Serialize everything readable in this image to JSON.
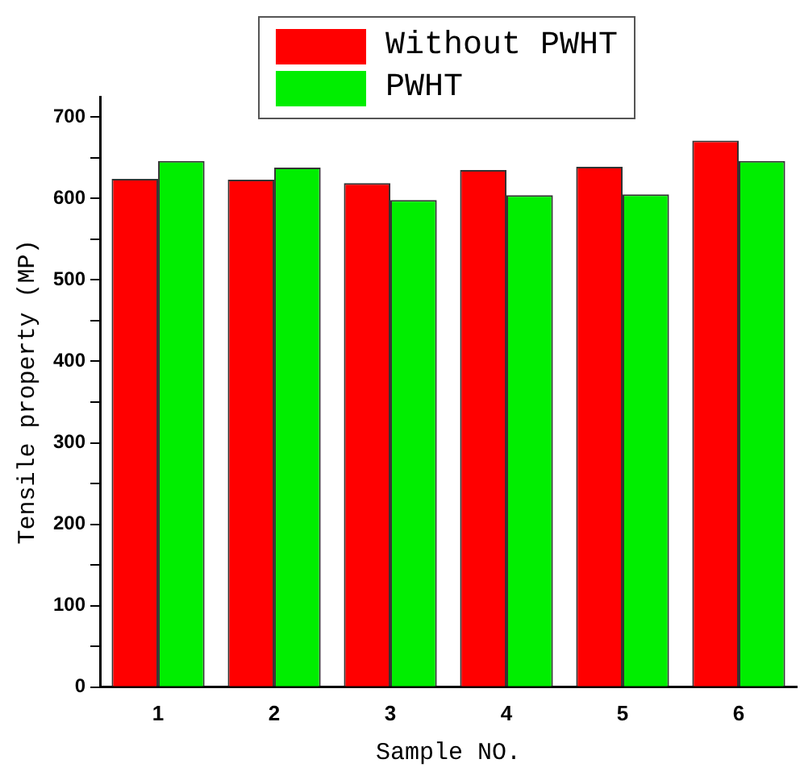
{
  "chart_data": {
    "type": "bar",
    "xlabel": "Sample NO.",
    "ylabel": "Tensile property (MP)",
    "categories": [
      "1",
      "2",
      "3",
      "4",
      "5",
      "6"
    ],
    "series": [
      {
        "name": "Without PWHT",
        "color": "#ff0000",
        "values": [
          624,
          623,
          619,
          635,
          639,
          671
        ]
      },
      {
        "name": "PWHT",
        "color": "#00ee00",
        "values": [
          646,
          638,
          598,
          604,
          605,
          646
        ]
      }
    ],
    "ylim": [
      0,
      725
    ],
    "yticks": [
      0,
      {
        "value": 50,
        "label": null
      },
      100,
      {
        "value": 150,
        "label": null
      },
      200,
      {
        "value": 250,
        "label": null
      },
      300,
      {
        "value": 350,
        "label": null
      },
      400,
      {
        "value": 450,
        "label": null
      },
      500,
      {
        "value": 550,
        "label": null
      },
      600,
      {
        "value": 650,
        "label": null
      },
      700
    ],
    "grid": false,
    "legend": "top"
  }
}
